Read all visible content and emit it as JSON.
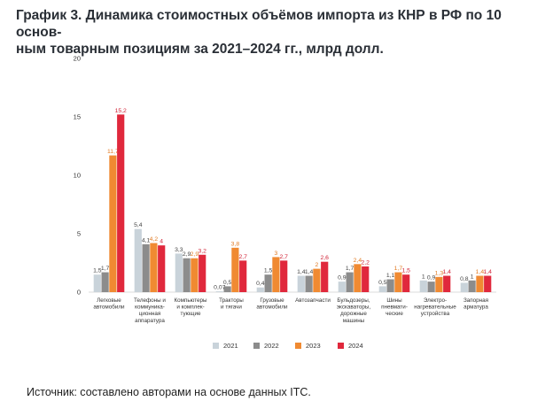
{
  "title": "График 3. Динамика стоимостных объёмов импорта из КНР в РФ по 10 основ-ным товарным позициям за 2021–2024 гг., млрд долл.",
  "title_lines": [
    "График 3. Динамика стоимостных объёмов импорта из КНР в РФ по 10 основ-",
    "ным товарным позициям за 2021–2024 гг., млрд долл."
  ],
  "source": "Источник: составлено авторами на основе данных ITC.",
  "chart_data": {
    "type": "bar",
    "ylim": [
      0,
      20
    ],
    "yticks": [
      "0",
      "5",
      "10",
      "15",
      "20"
    ],
    "grid": false,
    "legend_position": "bottom-center",
    "categories": [
      [
        "Легковые",
        "автомобили"
      ],
      [
        "Телефоны и",
        "коммуника-",
        "ционная",
        "аппаратура"
      ],
      [
        "Компьютеры",
        "и комплек-",
        "тующие"
      ],
      [
        "Тракторы",
        "и тягачи"
      ],
      [
        "Грузовые",
        "автомобили"
      ],
      [
        "Автозапчасти"
      ],
      [
        "Бульдозеры,",
        "экскаваторы,",
        "дорожные",
        "машины"
      ],
      [
        "Шины",
        "пневмати-",
        "ческие"
      ],
      [
        "Электро-",
        "нагревательные",
        "устройства"
      ],
      [
        "Запорная",
        "арматура"
      ]
    ],
    "series": [
      {
        "name": "2021",
        "color": "#c9d3da",
        "values": [
          1.5,
          5.4,
          3.3,
          0.07,
          0.4,
          1.4,
          0.9,
          0.5,
          1,
          0.8
        ],
        "labels": [
          "1,5",
          "5,4",
          "3,3",
          "0,07",
          "0,4",
          "1,4",
          "0,9",
          "0,5",
          "1",
          "0,8"
        ]
      },
      {
        "name": "2022",
        "color": "#8c8c8c",
        "values": [
          1.7,
          4.1,
          2.9,
          0.5,
          1.5,
          1.4,
          1.7,
          1.1,
          0.9,
          1
        ],
        "labels": [
          "1,7",
          "4,1",
          "2,9",
          "0,5",
          "1,5",
          "1,4",
          "1,7",
          "1,1",
          "0,9",
          "1"
        ]
      },
      {
        "name": "2023",
        "color": "#f08a32",
        "values": [
          11.7,
          4.2,
          2.9,
          3.8,
          3,
          2,
          2.4,
          1.7,
          1.3,
          1.4
        ],
        "labels": [
          "11,7",
          "4,2",
          "2,9",
          "3,8",
          "3",
          "2",
          "2,4",
          "1,7",
          "1,3",
          "1,4"
        ]
      },
      {
        "name": "2024",
        "color": "#e0283c",
        "values": [
          15.2,
          4,
          3.2,
          2.7,
          2.7,
          2.6,
          2.2,
          1.5,
          1.4,
          1.4
        ],
        "labels": [
          "15,2",
          "4",
          "3,2",
          "2,7",
          "2,7",
          "2,6",
          "2,2",
          "1,5",
          "1,4",
          "1,4"
        ]
      }
    ]
  }
}
